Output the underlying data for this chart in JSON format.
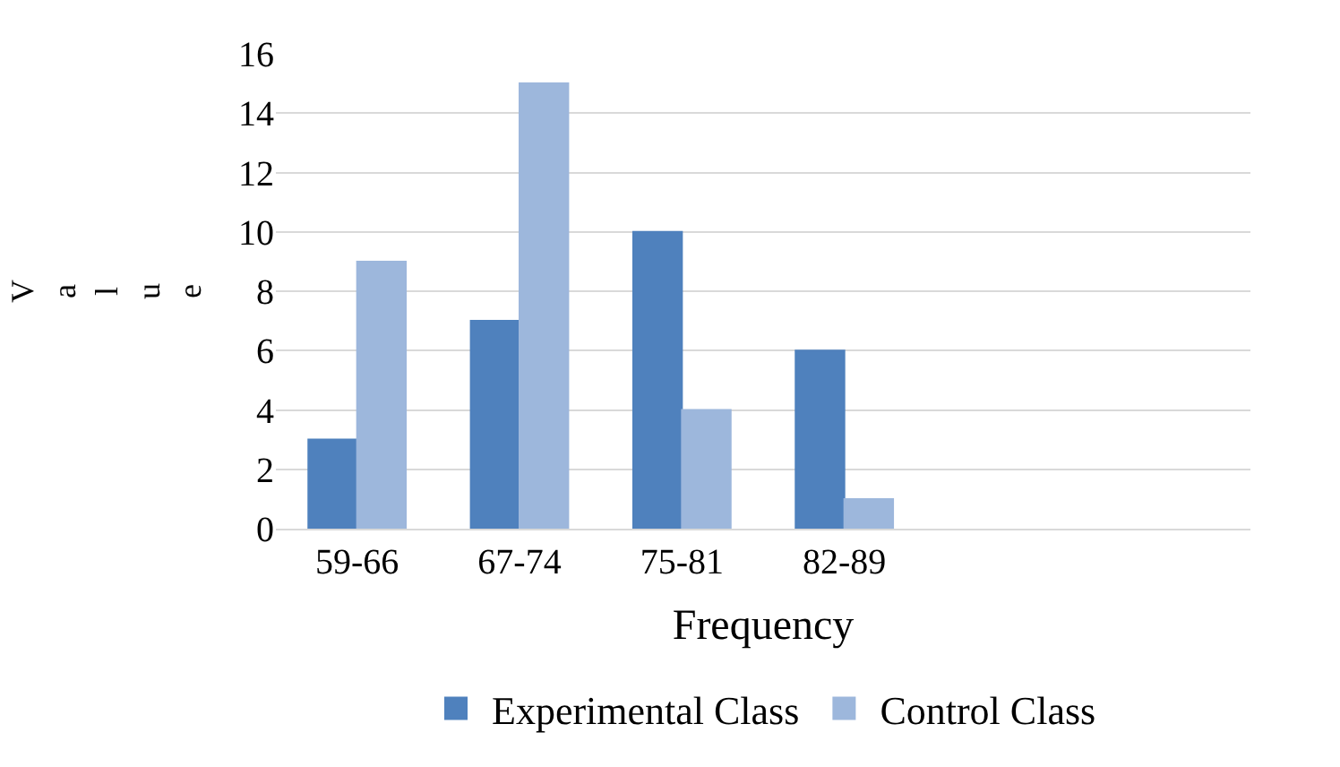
{
  "chart_data": {
    "type": "bar",
    "xlabel": "Frequency",
    "ylabel": "Value",
    "categories": [
      "59-66",
      "67-74",
      "75-81",
      "82-89",
      null,
      null
    ],
    "series": [
      {
        "name": "Experimental Class",
        "color": "#4f81bd",
        "values": [
          3,
          7,
          10,
          6,
          null,
          null
        ]
      },
      {
        "name": "Control Class",
        "color": "#9db7dc",
        "values": [
          9,
          15,
          4,
          1,
          null,
          null
        ]
      }
    ],
    "ylim": [
      0,
      16
    ],
    "yticks": [
      0,
      2,
      4,
      6,
      8,
      10,
      12,
      14,
      16
    ],
    "grid": "y",
    "legend": "bottom"
  }
}
